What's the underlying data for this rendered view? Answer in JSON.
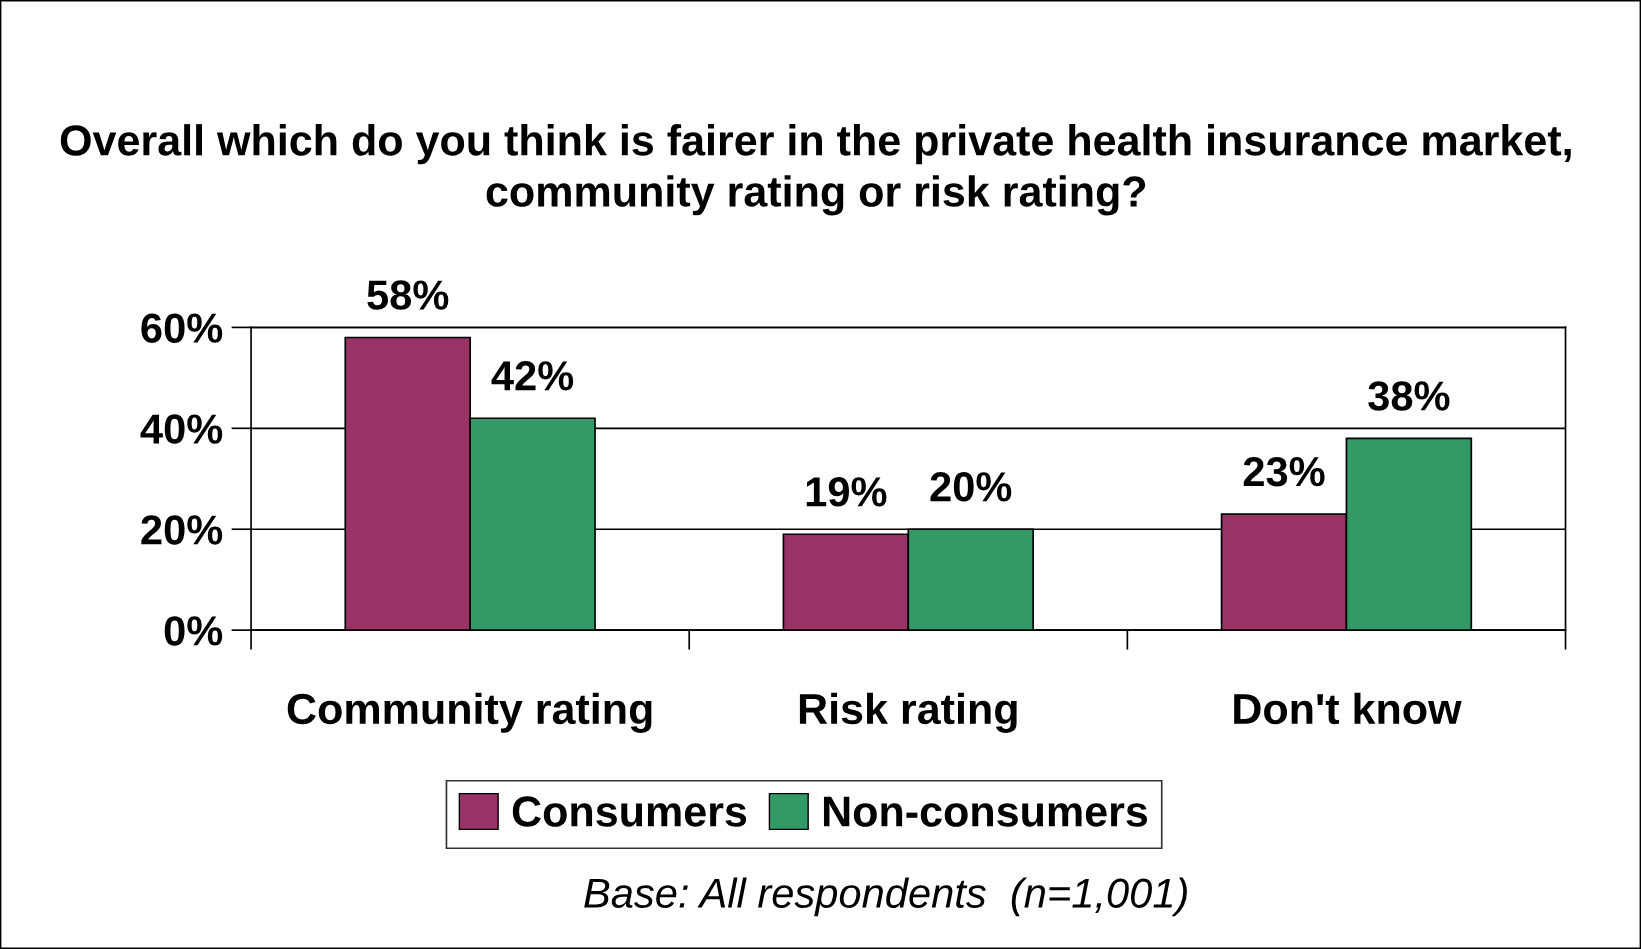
{
  "chart_data": {
    "type": "bar",
    "title": "Overall which do you think is fairer in the private health insurance market, community rating or risk rating?",
    "categories": [
      "Community rating",
      "Risk rating",
      "Don't know"
    ],
    "series": [
      {
        "name": "Consumers",
        "color": "#993366",
        "values": [
          58,
          19,
          23
        ],
        "value_labels": [
          "58%",
          "19%",
          "23%"
        ]
      },
      {
        "name": "Non-consumers",
        "color": "#339966",
        "values": [
          42,
          20,
          38
        ],
        "value_labels": [
          "42%",
          "20%",
          "38%"
        ]
      }
    ],
    "ylim": [
      0,
      60
    ],
    "yticks": [
      {
        "value": 0,
        "label": "0%"
      },
      {
        "value": 20,
        "label": "20%"
      },
      {
        "value": 40,
        "label": "40%"
      },
      {
        "value": 60,
        "label": "60%"
      }
    ],
    "grid": "y",
    "legend": "bottom",
    "annotations": [
      "Base: All respondents  (n=1,001)"
    ]
  }
}
